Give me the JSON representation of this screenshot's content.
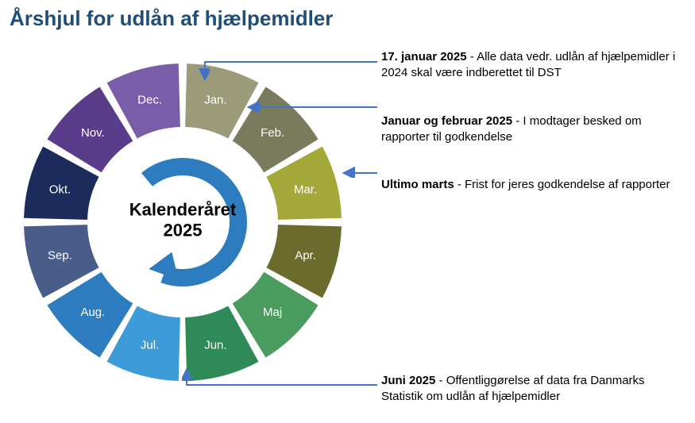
{
  "title": "Årshjul for udlån af hjælpemidler",
  "center_line1": "Kalenderåret",
  "center_line2": "2025",
  "wheel": {
    "type": "donut-wheel",
    "outer_radius": 200,
    "inner_radius": 120,
    "gap_deg": 3,
    "background": "#ffffff",
    "label_color": "#ffffff",
    "label_fontsize": 15,
    "label_fontweight": "normal",
    "segments": [
      {
        "label": "Jan.",
        "color": "#9b9b7a"
      },
      {
        "label": "Feb.",
        "color": "#7a7a5c"
      },
      {
        "label": "Mar.",
        "color": "#a3a838"
      },
      {
        "label": "Apr.",
        "color": "#6b6b2e"
      },
      {
        "label": "Maj",
        "color": "#4a9b5e"
      },
      {
        "label": "Jun.",
        "color": "#2e8b57"
      },
      {
        "label": "Jul.",
        "color": "#3d9bd8"
      },
      {
        "label": "Aug.",
        "color": "#2e7cc0"
      },
      {
        "label": "Sep.",
        "color": "#4a5d8a"
      },
      {
        "label": "Okt.",
        "color": "#1a2b5c"
      },
      {
        "label": "Nov.",
        "color": "#5a3d8a"
      },
      {
        "label": "Dec.",
        "color": "#7a5da8"
      }
    ],
    "arrow_color": "#2e7cc0"
  },
  "notes": [
    {
      "bold": "17. januar 2025",
      "text": " - Alle data vedr. udlån af hjælpe­midler i 2024 skal være indberettet til DST"
    },
    {
      "bold": "Januar og februar 2025",
      "text": " - I modtager besked om rapporter til godkendelse"
    },
    {
      "bold": "Ultimo marts",
      "text": " - Frist for jeres godkendelse af rapporter"
    },
    {
      "bold": "Juni 2025",
      "text": " - Offentliggørelse af data fra Dan­marks Statistik om udlån af hjælpemidler"
    }
  ],
  "connector_color": "#4472c4"
}
